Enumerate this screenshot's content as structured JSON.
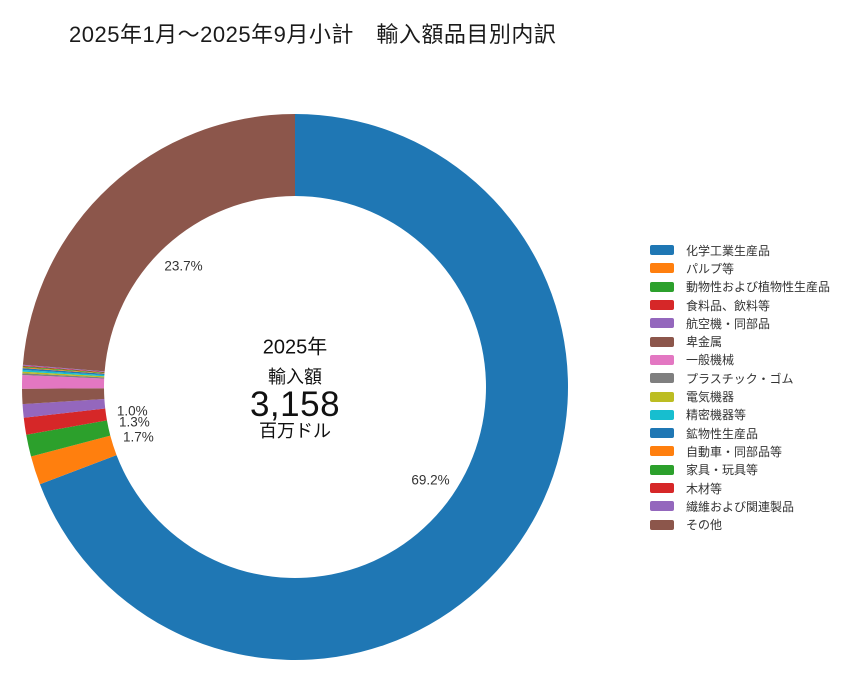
{
  "title": "2025年1月～2025年9月小計　輸入額品目別内訳",
  "chart_data": {
    "type": "pie",
    "subtype": "donut",
    "title": "2025年1月～2025年9月小計　輸入額品目別内訳",
    "legend_position": "right",
    "direction": "clockwise",
    "start_angle": "top",
    "hole_ratio": 0.7,
    "label_threshold_percent": 1.0,
    "center_text": {
      "line1": "2025年",
      "line2": "輸入額",
      "value": "3,158",
      "unit": "百万ドル"
    },
    "slices": [
      {
        "name": "化学工業生産品",
        "percent": 69.2,
        "color": "#1f77b4",
        "label": "69.2%"
      },
      {
        "name": "パルプ等",
        "percent": 1.7,
        "color": "#ff7f0e",
        "label": "1.7%"
      },
      {
        "name": "動物性および植物性生産品",
        "percent": 1.3,
        "color": "#2ca02c",
        "label": "1.3%"
      },
      {
        "name": "食料品、飲料等",
        "percent": 1.0,
        "color": "#d62728",
        "label": "1.0%"
      },
      {
        "name": "航空機・同部品",
        "percent": 0.8,
        "color": "#9467bd",
        "label": null
      },
      {
        "name": "卑金属",
        "percent": 0.9,
        "color": "#8c564b",
        "label": null
      },
      {
        "name": "一般機械",
        "percent": 0.8,
        "color": "#e377c2",
        "label": null
      },
      {
        "name": "プラスチック・ゴム",
        "percent": 0.1,
        "color": "#7f7f7f",
        "label": null
      },
      {
        "name": "電気機器",
        "percent": 0.1,
        "color": "#bcbd22",
        "label": null
      },
      {
        "name": "精密機器等",
        "percent": 0.1,
        "color": "#17becf",
        "label": null
      },
      {
        "name": "鉱物性生産品",
        "percent": 0.1,
        "color": "#1f77b4",
        "label": null
      },
      {
        "name": "自動車・同部品等",
        "percent": 0.05,
        "color": "#ff7f0e",
        "label": null
      },
      {
        "name": "家具・玩具等",
        "percent": 0.05,
        "color": "#2ca02c",
        "label": null
      },
      {
        "name": "木材等",
        "percent": 0.05,
        "color": "#d62728",
        "label": null
      },
      {
        "name": "繊維および関連製品",
        "percent": 0.05,
        "color": "#9467bd",
        "label": null
      },
      {
        "name": "その他",
        "percent": 23.7,
        "color": "#8c564b",
        "label": "23.7%"
      }
    ]
  }
}
